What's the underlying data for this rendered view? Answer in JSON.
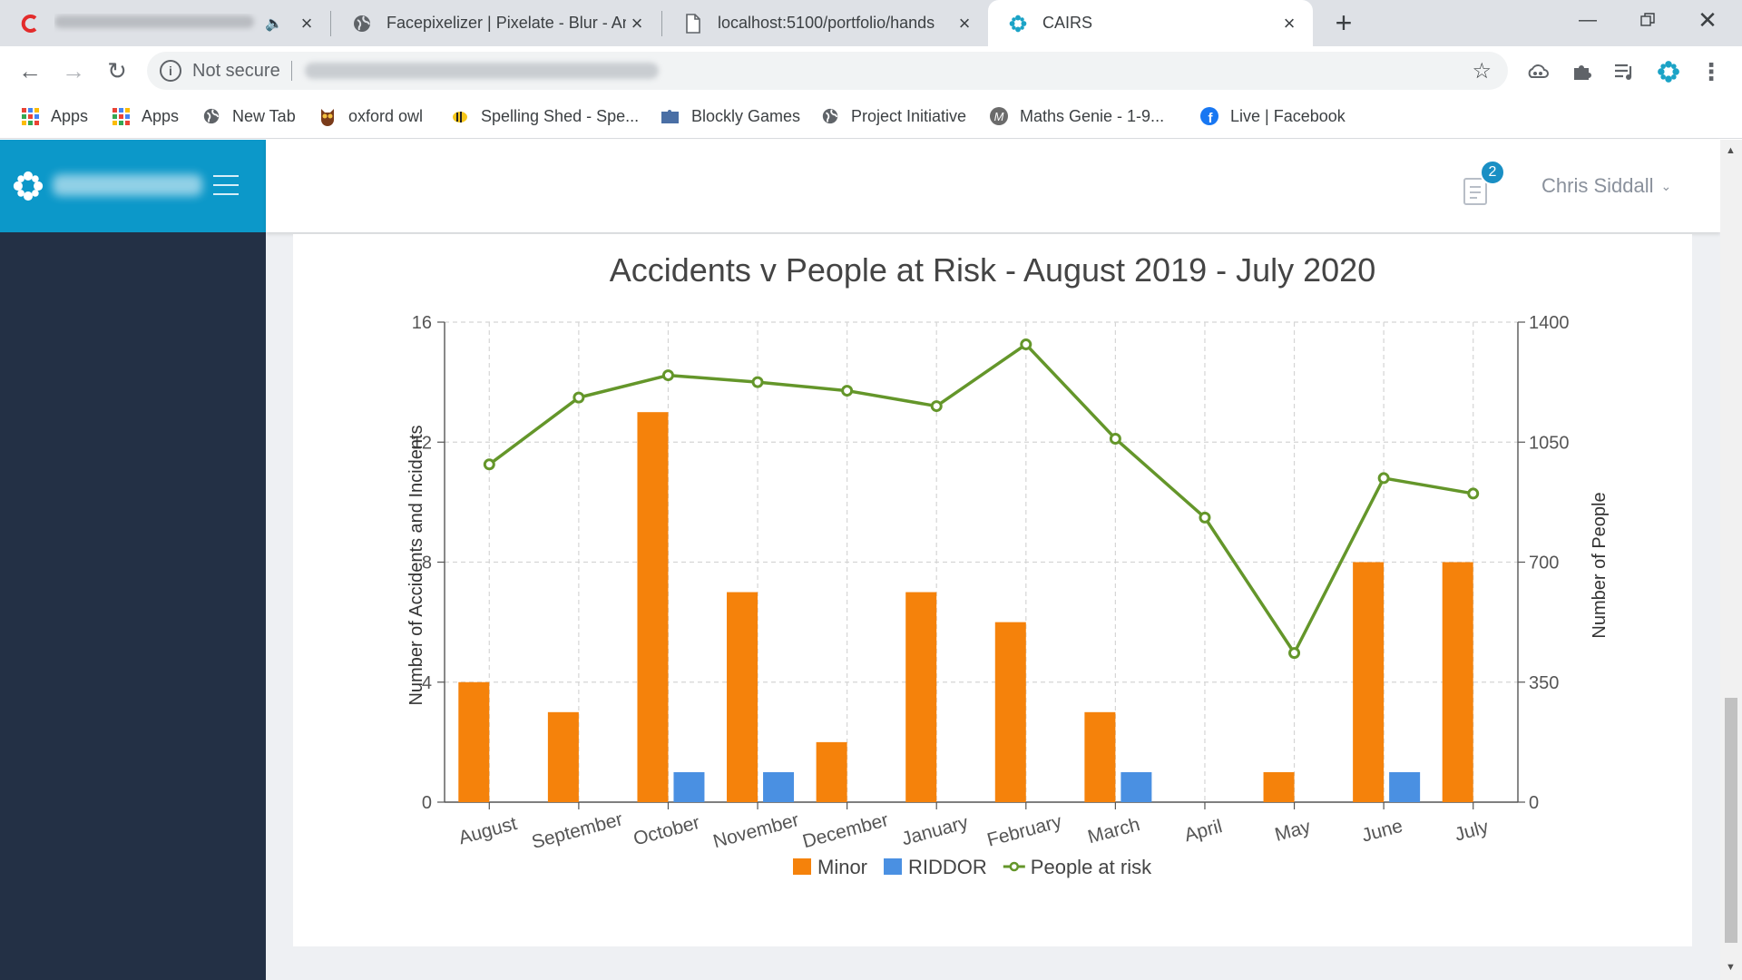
{
  "browser": {
    "tabs": [
      {
        "title": "",
        "active": false
      },
      {
        "title": "Facepixelizer | Pixelate - Blur - An",
        "active": false
      },
      {
        "title": "localhost:5100/portfolio/hands",
        "active": false
      },
      {
        "title": "CAIRS",
        "active": true
      }
    ],
    "address": {
      "security_label": "Not secure"
    },
    "bookmarks": [
      {
        "label": "Apps",
        "icon": "apps-grid-icon"
      },
      {
        "label": "Apps",
        "icon": "apps-grid-icon"
      },
      {
        "label": "New Tab",
        "icon": "globe-icon"
      },
      {
        "label": "oxford owl",
        "icon": "owl-icon"
      },
      {
        "label": "Spelling Shed - Spe...",
        "icon": "bee-icon"
      },
      {
        "label": "Blockly Games",
        "icon": "puzzle-icon"
      },
      {
        "label": "Project Initiative",
        "icon": "globe-icon"
      },
      {
        "label": "Maths Genie - 1-9...",
        "icon": "maths-genie-icon"
      },
      {
        "label": "Live | Facebook",
        "icon": "facebook-icon"
      }
    ]
  },
  "app": {
    "notifications_count": "2",
    "user_name": "Chris Siddall"
  },
  "colors": {
    "sidebar": "#233045",
    "brand": "#0c98c9",
    "minor": "#f5820b",
    "riddor": "#4a90e2",
    "people": "#64962a"
  },
  "chart_data": {
    "type": "bar",
    "title": "Accidents v People at Risk - August 2019 - July 2020",
    "categories": [
      "August",
      "September",
      "October",
      "November",
      "December",
      "January",
      "February",
      "March",
      "April",
      "May",
      "June",
      "July"
    ],
    "series": [
      {
        "name": "Minor",
        "type": "bar",
        "axis": "left",
        "values": [
          4,
          3,
          13,
          7,
          2,
          7,
          6,
          3,
          0,
          1,
          8,
          8
        ]
      },
      {
        "name": "RIDDOR",
        "type": "bar",
        "axis": "left",
        "values": [
          0,
          0,
          1,
          1,
          0,
          0,
          0,
          1,
          0,
          0,
          1,
          0
        ]
      },
      {
        "name": "People at risk",
        "type": "line",
        "axis": "right",
        "values": [
          985,
          1180,
          1245,
          1225,
          1200,
          1155,
          1335,
          1060,
          830,
          435,
          945,
          900
        ]
      }
    ],
    "ylabel": "Number of Accidents and Incidents",
    "y2label": "Number of People",
    "ylim": [
      0,
      16
    ],
    "y2lim": [
      0,
      1400
    ],
    "yticks": [
      0,
      4,
      8,
      12,
      16
    ],
    "y2ticks": [
      0,
      350,
      700,
      1050,
      1400
    ],
    "grid": true,
    "legend": "bottom"
  }
}
